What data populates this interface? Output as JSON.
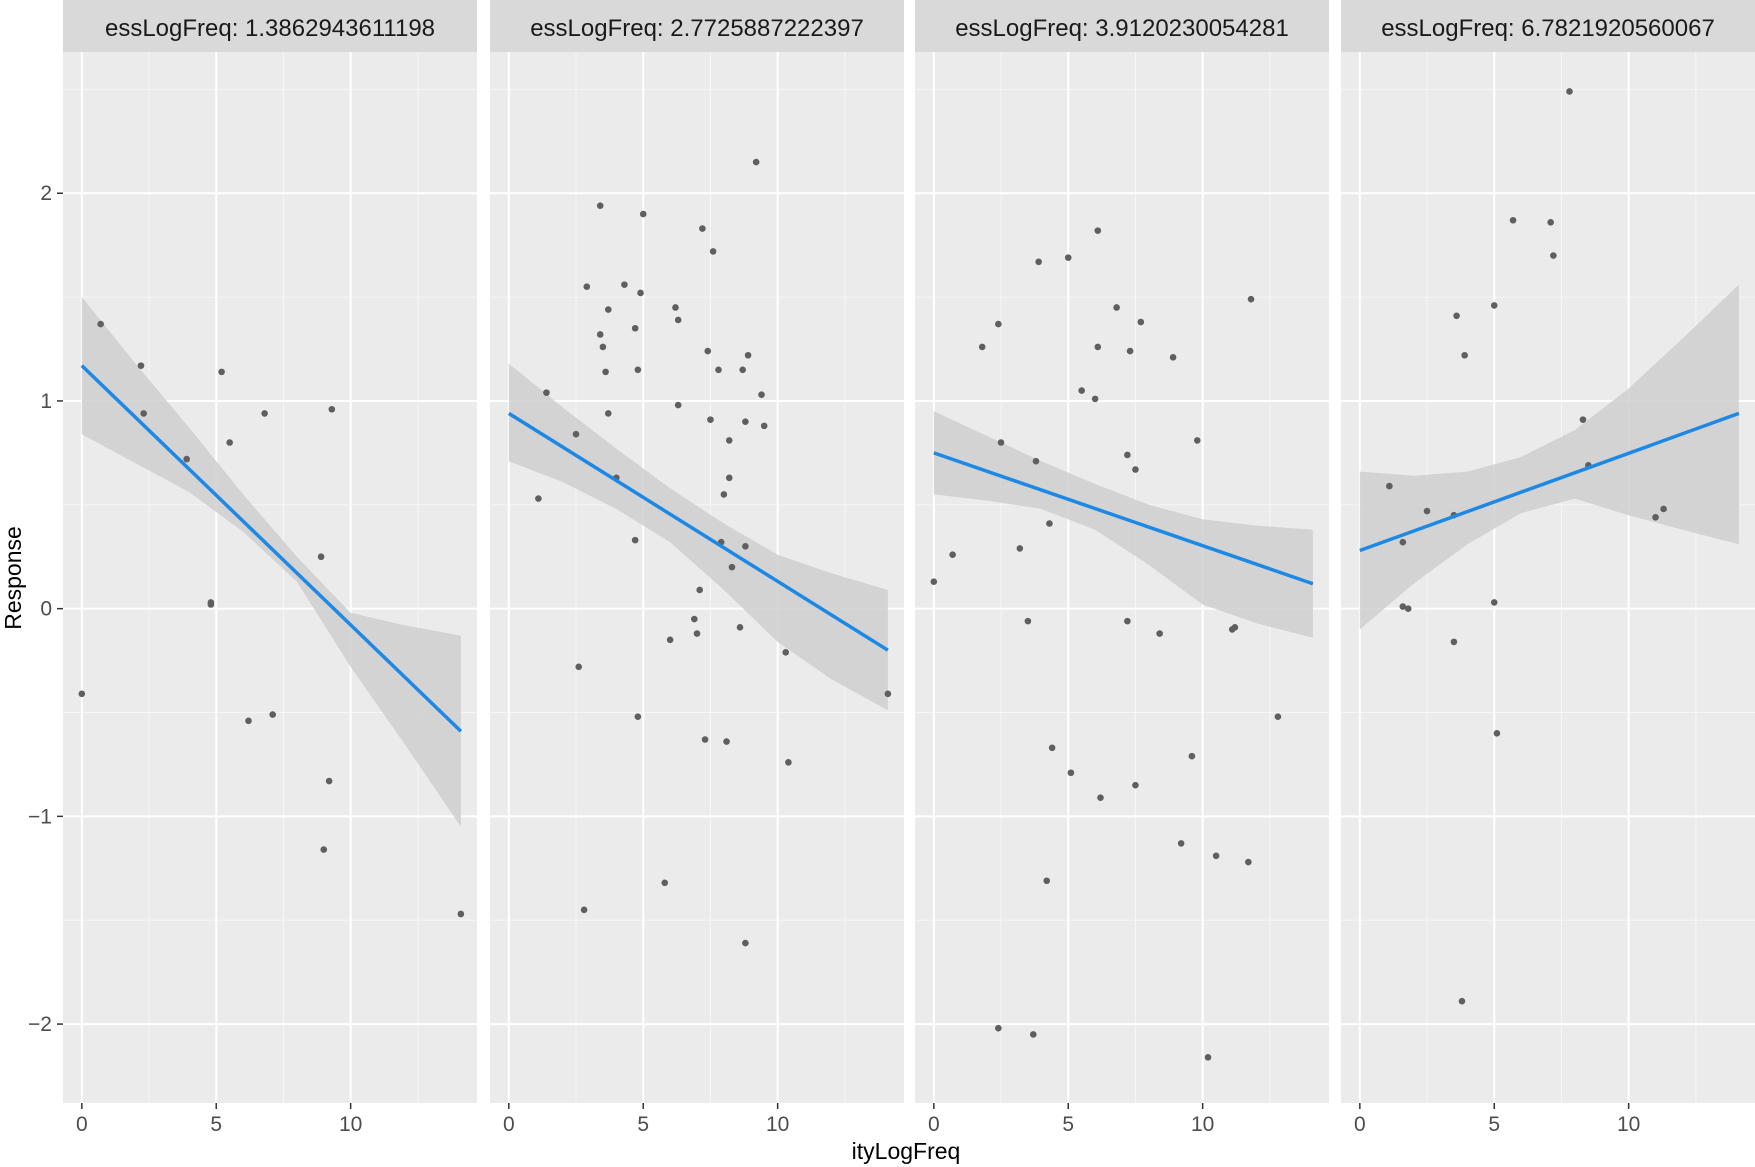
{
  "chart_data": {
    "type": "scatter",
    "xlabel": "ityLogFreq",
    "ylabel": "Response",
    "xlim": [
      -0.7,
      14.7
    ],
    "ylim": [
      -2.38,
      2.68
    ],
    "x_ticks": [
      0,
      5,
      10
    ],
    "y_ticks": [
      -2,
      -1,
      0,
      1,
      2
    ],
    "grid": true,
    "colors": {
      "panel_background": "#ebebeb",
      "strip_background": "#d9d9d9",
      "grid": "#ffffff",
      "points": "#5f5f5f",
      "fit_line": "#1e88e5",
      "ribbon": "#cfcfcf"
    },
    "panels": [
      {
        "strip_label": "essLogFreq: 1.3862943611198",
        "points": [
          [
            0.0,
            -0.41
          ],
          [
            0.7,
            1.37
          ],
          [
            2.2,
            1.17
          ],
          [
            2.3,
            0.94
          ],
          [
            3.9,
            0.72
          ],
          [
            4.8,
            0.03
          ],
          [
            4.8,
            0.02
          ],
          [
            5.2,
            1.14
          ],
          [
            5.5,
            0.8
          ],
          [
            6.2,
            -0.54
          ],
          [
            6.8,
            0.94
          ],
          [
            7.1,
            -0.51
          ],
          [
            8.9,
            0.25
          ],
          [
            9.0,
            -1.16
          ],
          [
            9.2,
            -0.83
          ],
          [
            9.3,
            0.96
          ],
          [
            14.1,
            -1.47
          ]
        ],
        "fit": {
          "x": [
            0,
            14.1
          ],
          "y": [
            1.17,
            -0.59
          ]
        },
        "ribbon": {
          "x": [
            0,
            2,
            4,
            6,
            8,
            10,
            12,
            14.1
          ],
          "upper": [
            1.5,
            1.18,
            0.87,
            0.55,
            0.25,
            -0.02,
            -0.08,
            -0.13
          ],
          "lower": [
            0.84,
            0.7,
            0.56,
            0.37,
            0.13,
            -0.28,
            -0.65,
            -1.05
          ]
        }
      },
      {
        "strip_label": "essLogFreq: 2.7725887222397",
        "points": [
          [
            1.1,
            0.53
          ],
          [
            1.4,
            1.04
          ],
          [
            2.5,
            0.84
          ],
          [
            2.6,
            -0.28
          ],
          [
            2.8,
            -1.45
          ],
          [
            2.9,
            1.55
          ],
          [
            3.4,
            1.94
          ],
          [
            3.4,
            1.32
          ],
          [
            3.5,
            1.26
          ],
          [
            3.6,
            1.14
          ],
          [
            3.7,
            0.94
          ],
          [
            3.7,
            1.44
          ],
          [
            4.0,
            0.63
          ],
          [
            4.3,
            1.56
          ],
          [
            4.7,
            0.33
          ],
          [
            4.7,
            1.35
          ],
          [
            4.8,
            1.15
          ],
          [
            4.8,
            -0.52
          ],
          [
            4.9,
            1.52
          ],
          [
            5.0,
            1.9
          ],
          [
            5.8,
            -1.32
          ],
          [
            6.0,
            -0.15
          ],
          [
            6.2,
            1.45
          ],
          [
            6.3,
            1.39
          ],
          [
            6.3,
            0.98
          ],
          [
            6.9,
            -0.05
          ],
          [
            7.0,
            -0.12
          ],
          [
            7.1,
            0.09
          ],
          [
            7.2,
            1.83
          ],
          [
            7.3,
            -0.63
          ],
          [
            7.4,
            1.24
          ],
          [
            7.5,
            0.91
          ],
          [
            7.6,
            1.72
          ],
          [
            7.8,
            1.15
          ],
          [
            7.9,
            0.32
          ],
          [
            8.0,
            0.55
          ],
          [
            8.1,
            -0.64
          ],
          [
            8.2,
            0.63
          ],
          [
            8.2,
            0.81
          ],
          [
            8.3,
            0.2
          ],
          [
            8.6,
            -0.09
          ],
          [
            8.7,
            1.15
          ],
          [
            8.8,
            0.9
          ],
          [
            8.8,
            0.3
          ],
          [
            8.8,
            -1.61
          ],
          [
            8.9,
            1.22
          ],
          [
            9.2,
            2.15
          ],
          [
            9.4,
            1.03
          ],
          [
            9.5,
            0.88
          ],
          [
            10.3,
            -0.21
          ],
          [
            10.4,
            -0.74
          ],
          [
            14.1,
            -0.41
          ]
        ],
        "fit": {
          "x": [
            0,
            14.1
          ],
          "y": [
            0.94,
            -0.2
          ]
        },
        "ribbon": {
          "x": [
            0,
            2,
            4,
            6,
            8,
            10,
            12,
            14.1
          ],
          "upper": [
            1.18,
            0.97,
            0.77,
            0.58,
            0.41,
            0.26,
            0.17,
            0.09
          ],
          "lower": [
            0.71,
            0.61,
            0.48,
            0.32,
            0.09,
            -0.16,
            -0.34,
            -0.49
          ]
        }
      },
      {
        "strip_label": "essLogFreq: 3.9120230054281",
        "points": [
          [
            0.0,
            0.13
          ],
          [
            0.7,
            0.26
          ],
          [
            1.8,
            1.26
          ],
          [
            2.4,
            1.37
          ],
          [
            2.4,
            -2.02
          ],
          [
            2.5,
            0.8
          ],
          [
            3.2,
            0.29
          ],
          [
            3.5,
            -0.06
          ],
          [
            3.7,
            -2.05
          ],
          [
            3.8,
            0.71
          ],
          [
            3.9,
            1.67
          ],
          [
            4.2,
            -1.31
          ],
          [
            4.3,
            0.41
          ],
          [
            4.4,
            -0.67
          ],
          [
            5.0,
            1.69
          ],
          [
            5.1,
            -0.79
          ],
          [
            5.5,
            1.05
          ],
          [
            6.0,
            1.01
          ],
          [
            6.1,
            1.82
          ],
          [
            6.1,
            1.26
          ],
          [
            6.2,
            -0.91
          ],
          [
            6.8,
            1.45
          ],
          [
            7.2,
            0.74
          ],
          [
            7.2,
            -0.06
          ],
          [
            7.3,
            1.24
          ],
          [
            7.5,
            -0.85
          ],
          [
            7.5,
            0.67
          ],
          [
            7.7,
            1.38
          ],
          [
            8.4,
            -0.12
          ],
          [
            8.9,
            1.21
          ],
          [
            9.2,
            -1.13
          ],
          [
            9.6,
            -0.71
          ],
          [
            9.8,
            0.81
          ],
          [
            10.2,
            -2.16
          ],
          [
            10.5,
            -1.19
          ],
          [
            11.1,
            -0.1
          ],
          [
            11.2,
            -0.09
          ],
          [
            11.7,
            -1.22
          ],
          [
            11.8,
            1.49
          ],
          [
            12.8,
            -0.52
          ]
        ],
        "fit": {
          "x": [
            0,
            14.1
          ],
          "y": [
            0.75,
            0.12
          ]
        },
        "ribbon": {
          "x": [
            0,
            2,
            4,
            6,
            8,
            10,
            12,
            14.1
          ],
          "upper": [
            0.95,
            0.83,
            0.71,
            0.6,
            0.5,
            0.43,
            0.4,
            0.38
          ],
          "lower": [
            0.55,
            0.52,
            0.48,
            0.38,
            0.21,
            0.02,
            -0.07,
            -0.14
          ]
        }
      },
      {
        "strip_label": "essLogFreq: 6.7821920560067",
        "points": [
          [
            1.1,
            0.59
          ],
          [
            1.6,
            0.32
          ],
          [
            1.6,
            0.01
          ],
          [
            1.8,
            0.0
          ],
          [
            2.5,
            0.47
          ],
          [
            3.5,
            -0.16
          ],
          [
            3.5,
            0.45
          ],
          [
            3.6,
            1.41
          ],
          [
            3.8,
            -1.89
          ],
          [
            3.9,
            1.22
          ],
          [
            5.0,
            1.46
          ],
          [
            5.0,
            0.03
          ],
          [
            5.1,
            -0.6
          ],
          [
            5.7,
            1.87
          ],
          [
            7.1,
            1.86
          ],
          [
            7.2,
            1.7
          ],
          [
            7.8,
            2.49
          ],
          [
            8.3,
            0.91
          ],
          [
            8.5,
            0.69
          ],
          [
            11.0,
            0.44
          ],
          [
            11.3,
            0.48
          ]
        ],
        "fit": {
          "x": [
            0,
            14.1
          ],
          "y": [
            0.28,
            0.94
          ]
        },
        "ribbon": {
          "x": [
            0,
            2,
            4,
            6,
            8,
            10,
            12,
            14.1
          ],
          "upper": [
            0.66,
            0.64,
            0.66,
            0.73,
            0.86,
            1.06,
            1.3,
            1.56
          ],
          "lower": [
            -0.1,
            0.12,
            0.31,
            0.46,
            0.53,
            0.45,
            0.38,
            0.31
          ]
        }
      }
    ]
  }
}
